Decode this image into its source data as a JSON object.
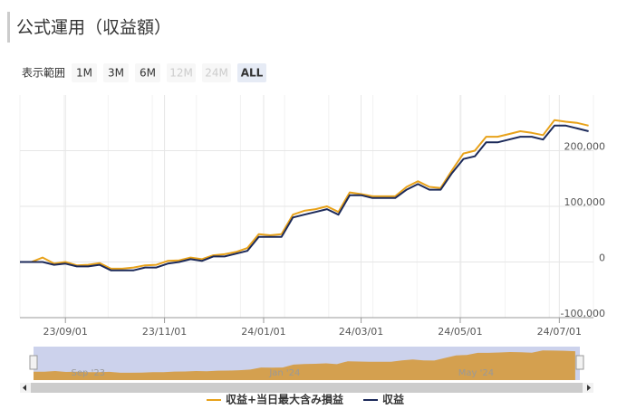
{
  "chart_data": {
    "type": "line",
    "title": "公式運用（収益額）",
    "range_selector": {
      "label": "表示範囲",
      "buttons": [
        "1M",
        "3M",
        "6M",
        "12M",
        "24M",
        "ALL"
      ],
      "disabled": [
        3,
        4
      ],
      "selected": 5
    },
    "x": [
      "23/08/04",
      "23/08/11",
      "23/08/18",
      "23/08/25",
      "23/09/01",
      "23/09/08",
      "23/09/15",
      "23/09/22",
      "23/09/29",
      "23/10/06",
      "23/10/13",
      "23/10/20",
      "23/10/27",
      "23/11/03",
      "23/11/10",
      "23/11/17",
      "23/11/24",
      "23/12/01",
      "23/12/08",
      "23/12/15",
      "23/12/22",
      "23/12/29",
      "24/01/05",
      "24/01/12",
      "24/01/19",
      "24/01/26",
      "24/02/02",
      "24/02/09",
      "24/02/16",
      "24/02/23",
      "24/03/01",
      "24/03/08",
      "24/03/15",
      "24/03/22",
      "24/03/29",
      "24/04/05",
      "24/04/12",
      "24/04/19",
      "24/04/26",
      "24/05/03",
      "24/05/10",
      "24/05/17",
      "24/05/24",
      "24/05/31",
      "24/06/07",
      "24/06/14",
      "24/06/21",
      "24/06/28",
      "24/07/05",
      "24/07/12",
      "24/07/19"
    ],
    "series": [
      {
        "name": "収益+当日最大含み損益",
        "color": "#e8a21a",
        "values": [
          0,
          0,
          8000,
          -3000,
          0,
          -6000,
          -5000,
          -2000,
          -12000,
          -12000,
          -10000,
          -6000,
          -5000,
          2000,
          3000,
          8000,
          5000,
          12000,
          14000,
          18000,
          25000,
          50000,
          48000,
          50000,
          85000,
          92000,
          95000,
          100000,
          90000,
          125000,
          122000,
          118000,
          118000,
          118000,
          135000,
          145000,
          135000,
          133000,
          165000,
          195000,
          200000,
          225000,
          225000,
          230000,
          235000,
          232000,
          228000,
          255000,
          252000,
          250000,
          245000
        ]
      },
      {
        "name": "収益",
        "color": "#1c2a5a",
        "values": [
          0,
          0,
          0,
          -5000,
          -3000,
          -8000,
          -8000,
          -5000,
          -15000,
          -15000,
          -15000,
          -10000,
          -10000,
          -3000,
          0,
          5000,
          2000,
          10000,
          10000,
          15000,
          20000,
          45000,
          45000,
          45000,
          80000,
          85000,
          90000,
          95000,
          85000,
          120000,
          120000,
          115000,
          115000,
          115000,
          130000,
          140000,
          130000,
          130000,
          160000,
          185000,
          190000,
          215000,
          215000,
          220000,
          225000,
          225000,
          220000,
          245000,
          245000,
          240000,
          235000
        ]
      }
    ],
    "xlim": [
      "23/08/04",
      "24/07/22"
    ],
    "xticks": [
      "23/09/01",
      "23/11/01",
      "24/01/01",
      "24/03/01",
      "24/05/01",
      "24/07/01"
    ],
    "ylim": [
      -100000,
      300000
    ],
    "yticks": [
      {
        "value": -100000,
        "label": "-100,000"
      },
      0,
      {
        "value": 100000,
        "label": "100,000"
      },
      {
        "value": 200000,
        "label": "200,000"
      }
    ],
    "grid": true,
    "navigator": {
      "labels": [
        "Sep '23",
        "Jan '24",
        "May '24"
      ],
      "color": "#d4a04f"
    },
    "legend": "bottom"
  }
}
